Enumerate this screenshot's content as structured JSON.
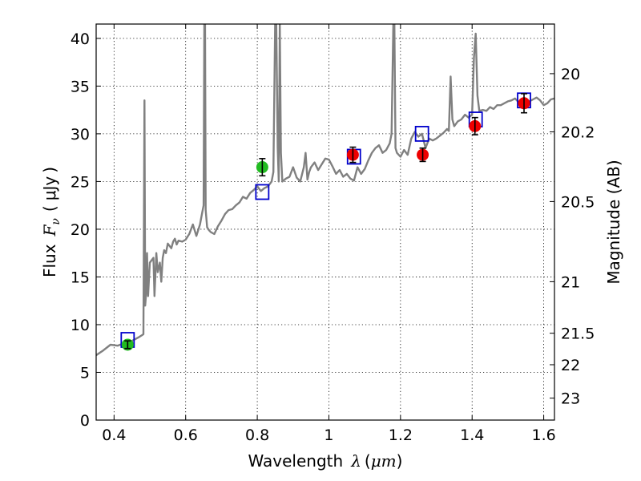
{
  "chart_data": {
    "type": "line",
    "title": "",
    "xlabel": "Wavelength",
    "xlabel_symbol": "λ",
    "xlabel_unit": "μm",
    "ylabel": "Flux",
    "ylabel_symbol": "F",
    "ylabel_subscript": "ν",
    "ylabel_unit": "μJy",
    "y2label": "Magnitude (AB)",
    "xlim": [
      0.35,
      1.63
    ],
    "ylim": [
      0,
      41.5
    ],
    "grid": true,
    "grid_style": "dotted",
    "xticks": [
      0.4,
      0.6,
      0.8,
      1.0,
      1.2,
      1.4,
      1.6
    ],
    "xtick_labels": [
      "0.4",
      "0.6",
      "0.8",
      "1",
      "1.2",
      "1.4",
      "1.6"
    ],
    "yticks": [
      0,
      5,
      10,
      15,
      20,
      25,
      30,
      35,
      40
    ],
    "ytick_labels": [
      "0",
      "5",
      "10",
      "15",
      "20",
      "25",
      "30",
      "35",
      "40"
    ],
    "mag_ticks": [
      {
        "label": "20",
        "flux": 36.3
      },
      {
        "label": "20.2",
        "flux": 30.2
      },
      {
        "label": "20.5",
        "flux": 22.9
      },
      {
        "label": "21",
        "flux": 14.5
      },
      {
        "label": "21.5",
        "flux": 9.1
      },
      {
        "label": "22",
        "flux": 5.8
      },
      {
        "label": "23",
        "flux": 2.3
      }
    ],
    "series": [
      {
        "kind": "model-spectrum",
        "color": "#808080",
        "x": [
          0.35,
          0.37,
          0.39,
          0.41,
          0.43,
          0.45,
          0.46,
          0.47,
          0.478,
          0.482,
          0.485,
          0.487,
          0.49,
          0.492,
          0.495,
          0.5,
          0.51,
          0.513,
          0.518,
          0.522,
          0.528,
          0.532,
          0.536,
          0.54,
          0.545,
          0.55,
          0.56,
          0.565,
          0.57,
          0.575,
          0.58,
          0.59,
          0.6,
          0.61,
          0.62,
          0.63,
          0.64,
          0.645,
          0.65,
          0.652,
          0.654,
          0.656,
          0.66,
          0.665,
          0.67,
          0.68,
          0.69,
          0.7,
          0.71,
          0.72,
          0.73,
          0.74,
          0.75,
          0.76,
          0.77,
          0.78,
          0.79,
          0.8,
          0.81,
          0.82,
          0.83,
          0.84,
          0.845,
          0.85,
          0.853,
          0.857,
          0.86,
          0.863,
          0.866,
          0.87,
          0.88,
          0.89,
          0.9,
          0.91,
          0.92,
          0.93,
          0.935,
          0.94,
          0.945,
          0.95,
          0.96,
          0.97,
          0.98,
          0.99,
          1.0,
          1.01,
          1.02,
          1.03,
          1.04,
          1.05,
          1.06,
          1.07,
          1.08,
          1.09,
          1.1,
          1.11,
          1.12,
          1.13,
          1.14,
          1.15,
          1.16,
          1.17,
          1.175,
          1.18,
          1.183,
          1.186,
          1.19,
          1.2,
          1.21,
          1.22,
          1.23,
          1.24,
          1.25,
          1.26,
          1.27,
          1.28,
          1.29,
          1.3,
          1.31,
          1.32,
          1.33,
          1.335,
          1.34,
          1.345,
          1.35,
          1.36,
          1.37,
          1.38,
          1.39,
          1.4,
          1.405,
          1.41,
          1.415,
          1.42,
          1.43,
          1.44,
          1.45,
          1.46,
          1.47,
          1.48,
          1.49,
          1.5,
          1.51,
          1.52,
          1.53,
          1.54,
          1.55,
          1.56,
          1.57,
          1.58,
          1.59,
          1.6,
          1.61,
          1.62,
          1.63
        ],
        "y": [
          6.8,
          7.3,
          7.9,
          7.8,
          8.1,
          8.3,
          8.5,
          8.7,
          8.9,
          9.0,
          33.5,
          12.0,
          13.5,
          17.5,
          13.0,
          16.5,
          17.0,
          13.0,
          17.5,
          15.5,
          16.5,
          14.5,
          17.0,
          17.8,
          17.5,
          18.5,
          18.0,
          18.7,
          19.0,
          18.4,
          18.8,
          18.7,
          18.9,
          19.5,
          20.5,
          19.3,
          20.5,
          21.5,
          22.5,
          41.5,
          41.5,
          22.0,
          20.2,
          19.9,
          19.7,
          19.5,
          20.3,
          20.9,
          21.6,
          22.0,
          22.1,
          22.5,
          22.8,
          23.4,
          23.2,
          23.8,
          24.1,
          24.5,
          24.0,
          24.3,
          24.5,
          25.0,
          26.0,
          41.5,
          41.5,
          28.5,
          25.0,
          41.5,
          28.0,
          25.0,
          25.3,
          25.5,
          26.5,
          25.4,
          25.0,
          26.5,
          28.0,
          25.2,
          26.0,
          26.5,
          27.0,
          26.2,
          26.8,
          27.4,
          27.3,
          26.6,
          25.8,
          26.2,
          25.5,
          25.8,
          25.3,
          25.1,
          26.5,
          25.8,
          26.3,
          27.2,
          28.0,
          28.5,
          28.8,
          28.0,
          28.3,
          29.0,
          30.0,
          41.5,
          41.5,
          28.5,
          28.0,
          27.6,
          28.3,
          27.8,
          29.5,
          30.2,
          29.7,
          30.0,
          28.5,
          29.5,
          29.3,
          29.5,
          29.8,
          30.1,
          30.5,
          30.3,
          36.0,
          31.5,
          30.8,
          31.3,
          31.5,
          32.0,
          31.7,
          32.0,
          38.0,
          40.5,
          34.0,
          32.4,
          32.5,
          32.4,
          32.8,
          32.6,
          33.0,
          33.0,
          33.2,
          33.4,
          33.5,
          33.7,
          33.3,
          33.5,
          33.3,
          33.4,
          33.6,
          33.8,
          33.5,
          33.0,
          33.2,
          33.6,
          33.7
        ]
      },
      {
        "kind": "model-photometry",
        "marker": "open-square",
        "color": "#0000cc",
        "x": [
          0.438,
          0.814,
          1.07,
          1.26,
          1.41,
          1.545
        ],
        "y": [
          8.4,
          23.9,
          27.6,
          30.0,
          31.5,
          33.5
        ]
      },
      {
        "kind": "observed-photometry",
        "marker": "filled-circle",
        "color": "#22bb22",
        "x": [
          0.438,
          0.814
        ],
        "y": [
          7.9,
          26.5
        ],
        "yerr": [
          0.4,
          0.9
        ]
      },
      {
        "kind": "observed-photometry",
        "marker": "filled-circle",
        "color": "#ee0000",
        "x": [
          1.067,
          1.262,
          1.408,
          1.545
        ],
        "y": [
          27.8,
          27.8,
          30.8,
          33.2
        ],
        "yerr": [
          0.8,
          0.7,
          0.9,
          1.0
        ]
      }
    ]
  }
}
